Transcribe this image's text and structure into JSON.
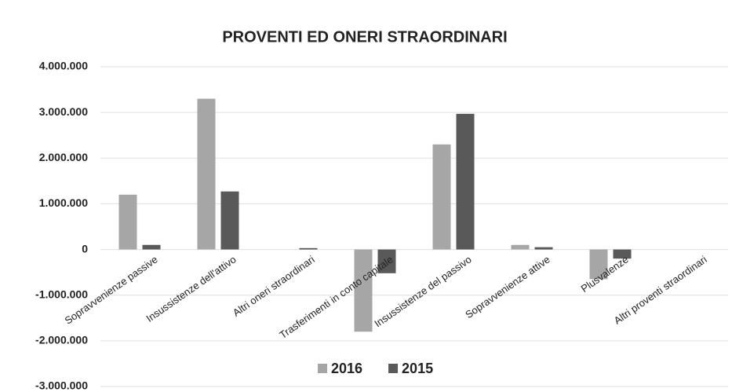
{
  "chart_data": {
    "type": "bar",
    "title": "PROVENTI ED ONERI STRAORDINARI",
    "categories": [
      "Sopravvenienze passive",
      "Insussistenze dell'attivo",
      "Altri oneri straordinari",
      "Trasferimenti in conto capitale",
      "Insussistenze del passivo",
      "Sopravvenienze attive",
      "Plusvalenze",
      "Altri proventi straordinari"
    ],
    "series": [
      {
        "name": "2016",
        "color": "#a6a6a6",
        "values": [
          1200000,
          3300000,
          0,
          -1800000,
          2300000,
          100000,
          -650000,
          0
        ]
      },
      {
        "name": "2015",
        "color": "#595959",
        "values": [
          100000,
          1270000,
          30000,
          -520000,
          2970000,
          50000,
          -200000,
          0
        ]
      }
    ],
    "ylim": [
      -3000000,
      4000000
    ],
    "yticks": [
      {
        "value": -3000000,
        "label": "-3.000.000"
      },
      {
        "value": -2000000,
        "label": "-2.000.000"
      },
      {
        "value": -1000000,
        "label": "-1.000.000"
      },
      0,
      {
        "value": 1000000,
        "label": "1.000.000"
      },
      {
        "value": 2000000,
        "label": "2.000.000"
      },
      {
        "value": 3000000,
        "label": "3.000.000"
      },
      {
        "value": 4000000,
        "label": "4.000.000"
      }
    ],
    "grid": true,
    "legend": "bottom"
  }
}
